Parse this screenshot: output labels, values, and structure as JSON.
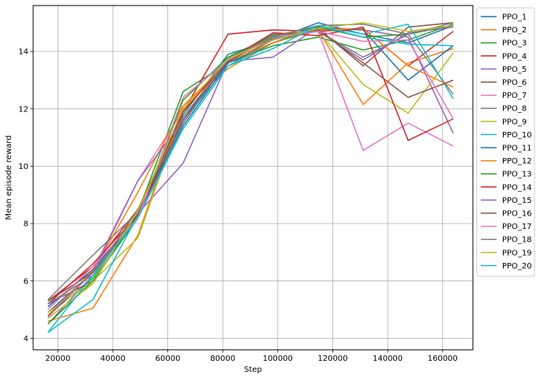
{
  "chart_data": {
    "type": "line",
    "title": "",
    "xlabel": "Step",
    "ylabel": "Mean episode reward",
    "xlim": [
      11000,
      171000
    ],
    "ylim": [
      3.6,
      15.6
    ],
    "xticks": [
      20000,
      40000,
      60000,
      80000,
      100000,
      120000,
      140000,
      160000
    ],
    "yticks": [
      4,
      6,
      8,
      10,
      12,
      14
    ],
    "grid": true,
    "legend_position": "outside-right",
    "x": [
      16384,
      32768,
      49152,
      65536,
      81920,
      98304,
      114688,
      131072,
      147456,
      163840
    ],
    "series": [
      {
        "name": "PPO_1",
        "color": "#1f77b4",
        "values": [
          4.9,
          6.3,
          8.3,
          11.8,
          13.9,
          14.4,
          15.0,
          14.6,
          14.3,
          14.9
        ]
      },
      {
        "name": "PPO_2",
        "color": "#ff7f0e",
        "values": [
          4.6,
          5.05,
          7.6,
          12.1,
          13.4,
          14.3,
          14.75,
          12.15,
          13.6,
          14.1
        ]
      },
      {
        "name": "PPO_3",
        "color": "#2ca02c",
        "values": [
          4.8,
          6.1,
          8.4,
          12.6,
          13.6,
          14.2,
          14.5,
          14.05,
          14.4,
          14.95
        ]
      },
      {
        "name": "PPO_4",
        "color": "#d62728",
        "values": [
          5.3,
          6.5,
          8.5,
          11.9,
          14.6,
          14.75,
          14.7,
          14.8,
          13.5,
          14.7
        ]
      },
      {
        "name": "PPO_5",
        "color": "#9467bd",
        "values": [
          4.5,
          6.2,
          8.35,
          10.1,
          13.65,
          13.8,
          14.85,
          14.75,
          14.5,
          11.15
        ]
      },
      {
        "name": "PPO_6",
        "color": "#8c564b",
        "values": [
          5.2,
          6.0,
          8.3,
          11.7,
          13.6,
          14.4,
          14.8,
          13.5,
          14.85,
          15.0
        ]
      },
      {
        "name": "PPO_7",
        "color": "#e377c2",
        "values": [
          5.1,
          6.4,
          9.5,
          11.95,
          13.75,
          14.55,
          14.7,
          10.55,
          11.5,
          10.7
        ]
      },
      {
        "name": "PPO_8",
        "color": "#7f7f7f",
        "values": [
          5.35,
          6.9,
          8.4,
          11.5,
          13.7,
          14.6,
          14.7,
          13.8,
          14.6,
          12.5
        ]
      },
      {
        "name": "PPO_9",
        "color": "#bcbd22",
        "values": [
          4.9,
          6.0,
          7.5,
          11.95,
          13.7,
          14.5,
          14.7,
          12.85,
          11.85,
          13.95
        ]
      },
      {
        "name": "PPO_10",
        "color": "#17becf",
        "values": [
          4.2,
          5.35,
          8.3,
          11.6,
          13.5,
          14.3,
          14.9,
          14.6,
          14.95,
          12.35
        ]
      },
      {
        "name": "PPO_11",
        "color": "#1f77b4",
        "values": [
          5.1,
          6.4,
          8.3,
          11.4,
          13.6,
          14.3,
          14.8,
          14.75,
          13.0,
          14.2
        ]
      },
      {
        "name": "PPO_12",
        "color": "#ff7f0e",
        "values": [
          4.8,
          6.35,
          9.1,
          12.1,
          13.65,
          14.3,
          14.75,
          14.8,
          13.5,
          12.75
        ]
      },
      {
        "name": "PPO_13",
        "color": "#2ca02c",
        "values": [
          4.5,
          6.0,
          8.2,
          12.3,
          13.8,
          14.55,
          14.85,
          14.5,
          14.6,
          14.9
        ]
      },
      {
        "name": "PPO_14",
        "color": "#d62728",
        "values": [
          5.2,
          6.6,
          8.3,
          11.9,
          13.7,
          14.65,
          14.55,
          14.85,
          10.9,
          11.65
        ]
      },
      {
        "name": "PPO_15",
        "color": "#9467bd",
        "values": [
          4.75,
          6.3,
          9.5,
          11.6,
          13.7,
          14.45,
          14.7,
          13.7,
          14.65,
          14.85
        ]
      },
      {
        "name": "PPO_16",
        "color": "#8c564b",
        "values": [
          5.3,
          6.3,
          8.3,
          11.6,
          13.65,
          14.5,
          14.75,
          13.6,
          12.4,
          13.0
        ]
      },
      {
        "name": "PPO_17",
        "color": "#e377c2",
        "values": [
          5.0,
          6.5,
          8.2,
          12.4,
          13.7,
          14.5,
          14.7,
          14.35,
          14.4,
          11.65
        ]
      },
      {
        "name": "PPO_18",
        "color": "#7f7f7f",
        "values": [
          5.2,
          6.2,
          8.5,
          11.7,
          13.75,
          14.5,
          14.9,
          14.95,
          14.6,
          15.0
        ]
      },
      {
        "name": "PPO_19",
        "color": "#bcbd22",
        "values": [
          4.7,
          5.9,
          8.45,
          12.0,
          13.75,
          14.4,
          14.8,
          15.0,
          14.7,
          14.9
        ]
      },
      {
        "name": "PPO_20",
        "color": "#17becf",
        "values": [
          4.2,
          6.2,
          8.2,
          11.3,
          13.5,
          14.1,
          14.9,
          14.5,
          14.25,
          14.2
        ]
      }
    ]
  }
}
